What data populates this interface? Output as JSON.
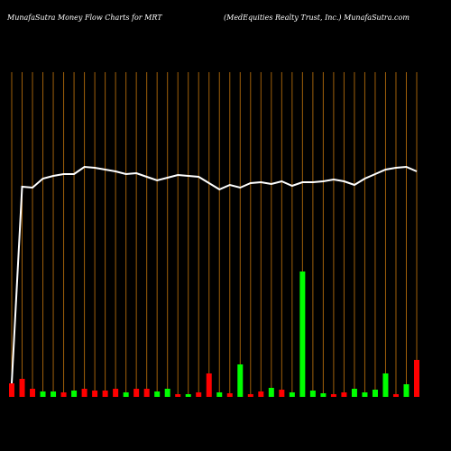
{
  "chart_data": {
    "type": "bar",
    "title": "MunafaSutra  Money Flow  Charts for MRT",
    "subtitle": "(MedEquities Realty Trust,  Inc.) MunafaSutra.com",
    "categories": [
      null,
      null,
      null,
      null,
      null,
      null,
      null,
      null,
      null,
      null,
      null,
      null,
      null,
      null,
      null,
      null,
      null,
      null,
      null,
      null,
      null,
      null,
      null,
      null,
      null,
      null,
      null,
      null,
      null,
      null,
      null,
      null,
      null,
      null,
      null,
      null,
      null,
      null,
      null,
      null
    ],
    "series": [
      {
        "values": [
          15,
          20,
          9,
          6,
          6,
          5,
          7,
          9,
          7,
          7,
          9,
          5,
          9,
          9,
          6,
          9,
          3,
          3,
          5,
          26,
          5,
          4,
          36,
          3,
          6,
          10,
          8,
          5,
          139,
          7,
          4,
          3,
          5,
          9,
          5,
          8,
          26,
          3,
          14,
          41
        ],
        "colors": [
          "#ff0000",
          "#ff0000",
          "#ff0000",
          "#00ff00",
          "#00ff00",
          "#ff0000",
          "#00ff00",
          "#ff0000",
          "#ff0000",
          "#ff0000",
          "#ff0000",
          "#00ff00",
          "#ff0000",
          "#ff0000",
          "#00ff00",
          "#00ff00",
          "#ff0000",
          "#00ff00",
          "#ff0000",
          "#ff0000",
          "#00ff00",
          "#ff0000",
          "#00ff00",
          "#ff0000",
          "#ff0000",
          "#00ff00",
          "#ff0000",
          "#00ff00",
          "#00ff00",
          "#00ff00",
          "#00ff00",
          "#ff0000",
          "#ff0000",
          "#00ff00",
          "#00ff00",
          "#00ff00",
          "#00ff00",
          "#ff0000",
          "#00ff00",
          "#ff0000"
        ]
      },
      {
        "type": "line",
        "color": "#ffffff",
        "values": [
          15,
          233,
          232,
          242,
          245,
          247,
          247,
          255,
          254,
          252,
          250,
          247,
          248,
          244,
          240,
          243,
          246,
          245,
          244,
          237,
          230,
          235,
          232,
          237,
          238,
          236,
          239,
          234,
          238,
          238,
          239,
          241,
          239,
          235,
          242,
          247,
          252,
          254,
          255,
          250
        ]
      }
    ],
    "ylim": [
      0,
      360
    ],
    "grid": true,
    "grid_color": "#a0600a"
  }
}
